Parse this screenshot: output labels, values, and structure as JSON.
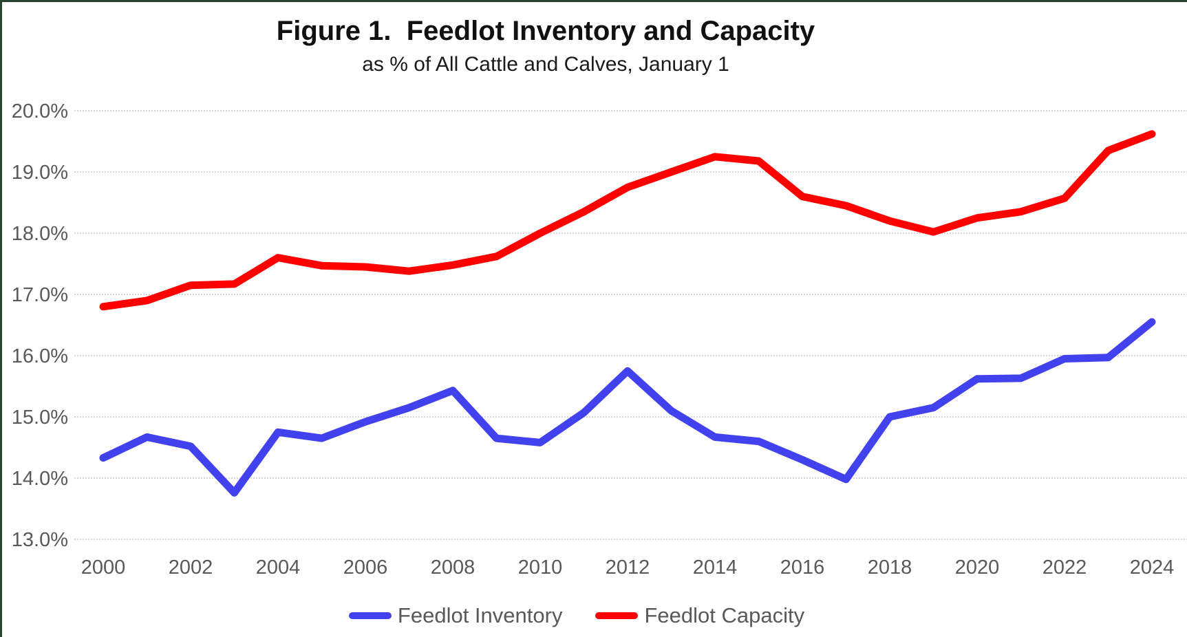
{
  "figure": {
    "title": "Figure 1.  Feedlot Inventory and Capacity",
    "subtitle": "as % of All Cattle and Calves, January 1"
  },
  "legend": [
    {
      "label": "Feedlot Inventory",
      "color": "#4141EE"
    },
    {
      "label": "Feedlot Capacity",
      "color": "#FF0000"
    }
  ],
  "colors": {
    "inventory_line": "#4141EE",
    "capacity_line": "#FF0000",
    "gridline": "#D6D6D6",
    "axis_text": "#595959"
  },
  "chart_data": {
    "type": "line",
    "x": [
      2000,
      2001,
      2002,
      2003,
      2004,
      2005,
      2006,
      2007,
      2008,
      2009,
      2010,
      2011,
      2012,
      2013,
      2014,
      2015,
      2016,
      2017,
      2018,
      2019,
      2020,
      2021,
      2022,
      2023,
      2024
    ],
    "series": [
      {
        "name": "Feedlot Inventory",
        "color": "#4141EE",
        "values": [
          14.33,
          14.67,
          14.52,
          13.76,
          14.75,
          14.65,
          14.92,
          15.15,
          15.43,
          14.65,
          14.58,
          15.07,
          15.75,
          15.1,
          14.67,
          14.6,
          14.3,
          13.98,
          15.0,
          15.15,
          15.62,
          15.63,
          15.95,
          15.97,
          16.55
        ]
      },
      {
        "name": "Feedlot Capacity",
        "color": "#FF0000",
        "values": [
          16.8,
          16.9,
          17.15,
          17.17,
          17.6,
          17.47,
          17.45,
          17.38,
          17.48,
          17.62,
          18.0,
          18.35,
          18.75,
          19.0,
          19.25,
          19.18,
          18.6,
          18.45,
          18.2,
          18.02,
          18.25,
          18.35,
          18.57,
          19.35,
          19.62
        ]
      }
    ],
    "ylim": [
      13.0,
      20.0
    ],
    "ytick_values": [
      20.0,
      19.0,
      18.0,
      17.0,
      16.0,
      15.0,
      14.0,
      13.0
    ],
    "ytick_labels": [
      "20.0%",
      "19.0%",
      "18.0%",
      "17.0%",
      "16.0%",
      "15.0%",
      "14.0%",
      "13.0%"
    ],
    "xtick_labels": [
      "2000",
      "2002",
      "2004",
      "2006",
      "2008",
      "2010",
      "2012",
      "2014",
      "2016",
      "2018",
      "2020",
      "2022",
      "2024"
    ],
    "xlabel": "",
    "ylabel": "",
    "grid": "horizontal-dotted",
    "legend_position": "bottom"
  }
}
